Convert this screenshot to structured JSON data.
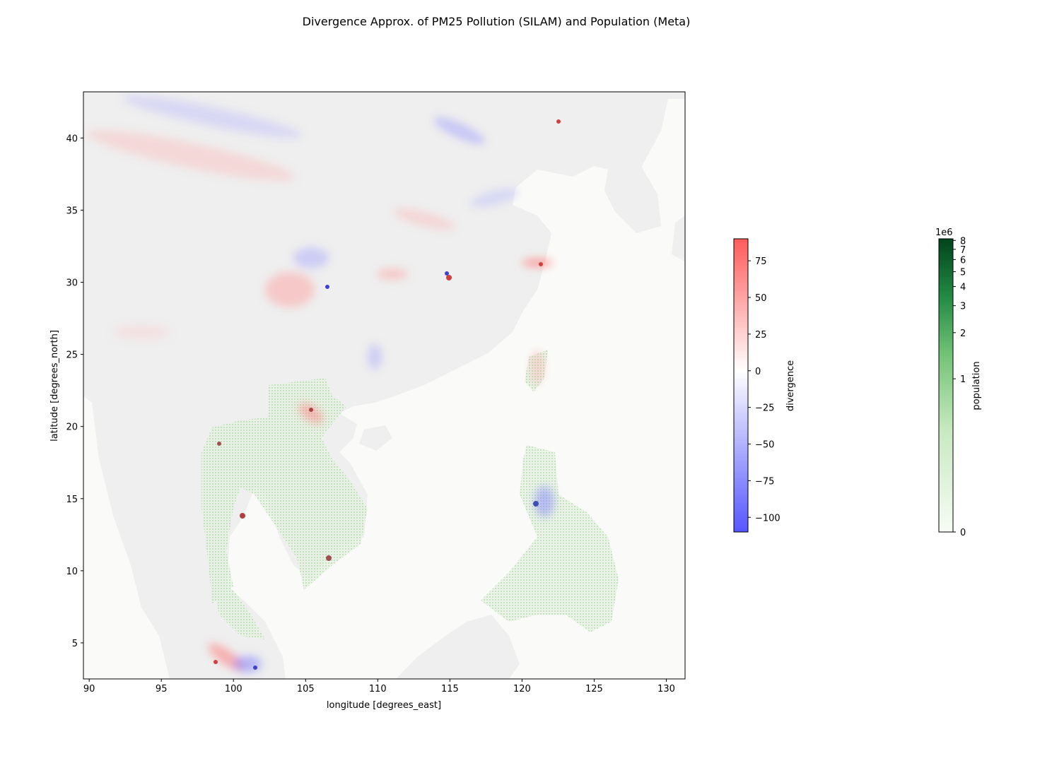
{
  "title": "Divergence Approx. of PM25 Pollution (SILAM) and Population (Meta)",
  "map": {
    "xlabel": "longitude [degrees_east]",
    "ylabel": "latitude [degrees_north]",
    "xlim": [
      89.6,
      131.3
    ],
    "ylim": [
      2.5,
      43.2
    ],
    "xticks": [
      {
        "value": 90,
        "label": "90"
      },
      {
        "value": 95,
        "label": "95"
      },
      {
        "value": 100,
        "label": "100"
      },
      {
        "value": 105,
        "label": "105"
      },
      {
        "value": 110,
        "label": "110"
      },
      {
        "value": 115,
        "label": "115"
      },
      {
        "value": 120,
        "label": "120"
      },
      {
        "value": 125,
        "label": "125"
      },
      {
        "value": 130,
        "label": "130"
      }
    ],
    "yticks": [
      {
        "value": 5,
        "label": "5"
      },
      {
        "value": 10,
        "label": "10"
      },
      {
        "value": 15,
        "label": "15"
      },
      {
        "value": 20,
        "label": "20"
      },
      {
        "value": 25,
        "label": "25"
      },
      {
        "value": 30,
        "label": "30"
      },
      {
        "value": 35,
        "label": "35"
      },
      {
        "value": 40,
        "label": "40"
      }
    ]
  },
  "colorbar_divergence": {
    "label": "divergence",
    "range": [
      -110,
      90
    ],
    "colormap": "bwr",
    "low_color": "#5555ff",
    "mid_color": "#ffffff",
    "high_color": "#ff5a5a",
    "ticks": [
      {
        "value": 75,
        "label": "75"
      },
      {
        "value": 50,
        "label": "50"
      },
      {
        "value": 25,
        "label": "25"
      },
      {
        "value": 0,
        "label": "0"
      },
      {
        "value": -25,
        "label": "−25"
      },
      {
        "value": -50,
        "label": "−50"
      },
      {
        "value": -75,
        "label": "−75"
      },
      {
        "value": -100,
        "label": "−100"
      }
    ]
  },
  "colorbar_population": {
    "label": "population",
    "offset_label": "1e6",
    "scale": "symlog",
    "range": [
      0,
      8.2
    ],
    "colormap": "Greens",
    "low_color": "#f7fcf5",
    "high_color": "#00441b",
    "ticks": [
      {
        "value": 8,
        "label": "8"
      },
      {
        "value": 7,
        "label": "7"
      },
      {
        "value": 6,
        "label": "6"
      },
      {
        "value": 5,
        "label": "5"
      },
      {
        "value": 4,
        "label": "4"
      },
      {
        "value": 3,
        "label": "3"
      },
      {
        "value": 2,
        "label": "2"
      },
      {
        "value": 1,
        "label": "1"
      },
      {
        "value": 0,
        "label": "0"
      }
    ]
  }
}
